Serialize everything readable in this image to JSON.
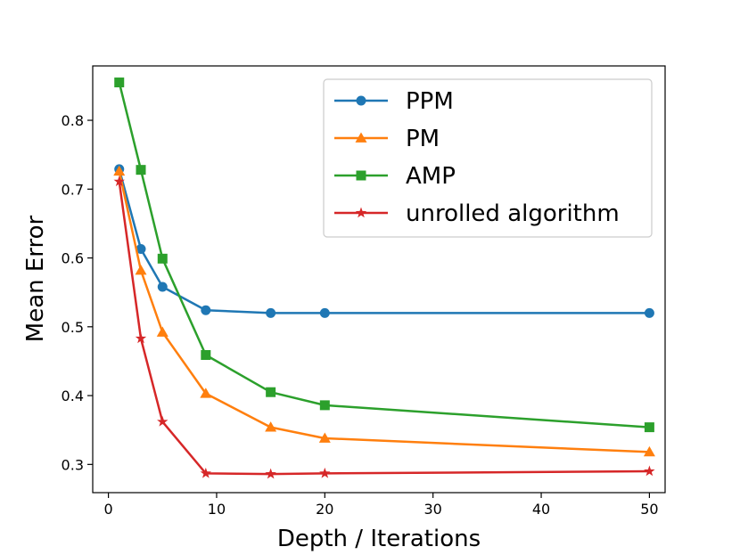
{
  "chart_data": {
    "type": "line",
    "title": "",
    "xlabel": "Depth / Iterations",
    "ylabel": "Mean Error",
    "xlim": [
      -1.45,
      51.45
    ],
    "ylim": [
      0.259,
      0.879
    ],
    "xticks": [
      0,
      10,
      20,
      30,
      40,
      50
    ],
    "xtick_labels": [
      "0",
      "10",
      "20",
      "30",
      "40",
      "50"
    ],
    "yticks": [
      0.3,
      0.4,
      0.5,
      0.6,
      0.7,
      0.8
    ],
    "ytick_labels": [
      "0.3",
      "0.4",
      "0.5",
      "0.6",
      "0.7",
      "0.8"
    ],
    "grid": false,
    "legend_position": "top-right",
    "x": [
      1,
      3,
      5,
      9,
      15,
      20,
      50
    ],
    "series": [
      {
        "name": "PPM",
        "color": "#1f77b4",
        "marker": "circle",
        "values": [
          0.729,
          0.613,
          0.558,
          0.524,
          0.52,
          0.52,
          0.52
        ]
      },
      {
        "name": "PM",
        "color": "#ff7f0e",
        "marker": "triangle",
        "values": [
          0.726,
          0.582,
          0.492,
          0.403,
          0.354,
          0.338,
          0.318
        ]
      },
      {
        "name": "AMP",
        "color": "#2ca02c",
        "marker": "square",
        "values": [
          0.855,
          0.728,
          0.599,
          0.459,
          0.405,
          0.386,
          0.354
        ]
      },
      {
        "name": "unrolled algorithm",
        "color": "#d62728",
        "marker": "star",
        "values": [
          0.711,
          0.483,
          0.362,
          0.287,
          0.286,
          0.287,
          0.29
        ]
      }
    ]
  }
}
